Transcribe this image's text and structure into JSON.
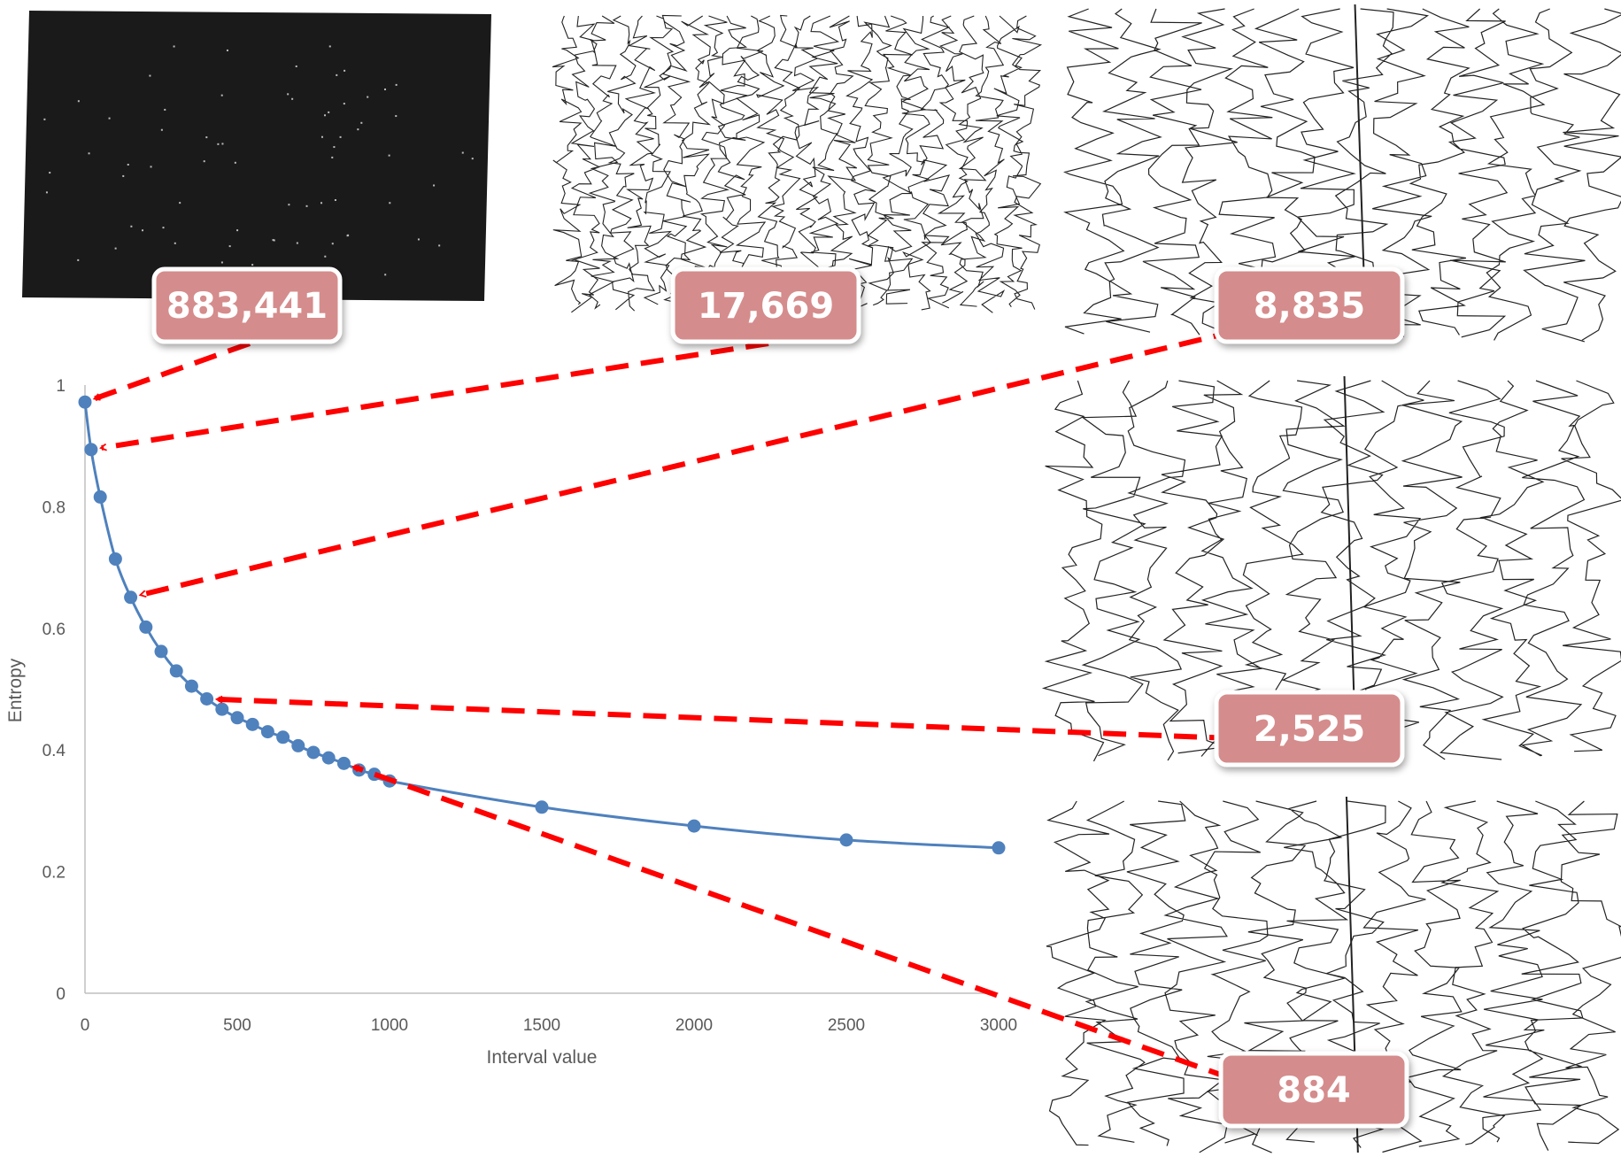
{
  "chart_data": {
    "type": "line",
    "title": "",
    "xlabel": "Interval value",
    "ylabel": "Entropy",
    "xlim": [
      0,
      3000
    ],
    "ylim": [
      0,
      1
    ],
    "xticks": [
      "0",
      "500",
      "1000",
      "1500",
      "2000",
      "2500",
      "3000"
    ],
    "yticks": [
      "0",
      "0.2",
      "0.4",
      "0.6",
      "0.8",
      "1"
    ],
    "grid": false,
    "legend": "none",
    "series": [
      {
        "color": "#4f81bd",
        "marker": "circle",
        "x": [
          0,
          20,
          50,
          100,
          150,
          200,
          250,
          300,
          350,
          400,
          450,
          500,
          550,
          600,
          650,
          700,
          750,
          800,
          850,
          900,
          950,
          1000,
          1500,
          2000,
          2500,
          3000
        ],
        "y": [
          0.972,
          0.894,
          0.816,
          0.714,
          0.651,
          0.602,
          0.562,
          0.53,
          0.505,
          0.484,
          0.467,
          0.453,
          0.442,
          0.43,
          0.421,
          0.407,
          0.396,
          0.387,
          0.378,
          0.367,
          0.36,
          0.349,
          0.306,
          0.275,
          0.252,
          0.239
        ]
      }
    ],
    "annotations": [
      {
        "label": "883,441",
        "x": 0,
        "y": 0.972
      },
      {
        "label": "17,669",
        "x": 20,
        "y": 0.894
      },
      {
        "label": "8,835",
        "x": 150,
        "y": 0.651
      },
      {
        "label": "2,525",
        "x": 400,
        "y": 0.484
      },
      {
        "label": "884",
        "x": 850,
        "y": 0.378
      }
    ]
  },
  "colors": {
    "line": "#4f81bd",
    "arrow": "#ff0000",
    "callout_fill": "#d58c8c",
    "callout_border": "#ffffff",
    "thumbnail_dark": "#1a1a1a"
  },
  "thumbnails": [
    {
      "label": "883,441",
      "style": "dark-point-cloud"
    },
    {
      "label": "17,669",
      "style": "dense-trajectory"
    },
    {
      "label": "8,835",
      "style": "trajectory"
    },
    {
      "label": "2,525",
      "style": "trajectory"
    },
    {
      "label": "884",
      "style": "trajectory"
    }
  ]
}
